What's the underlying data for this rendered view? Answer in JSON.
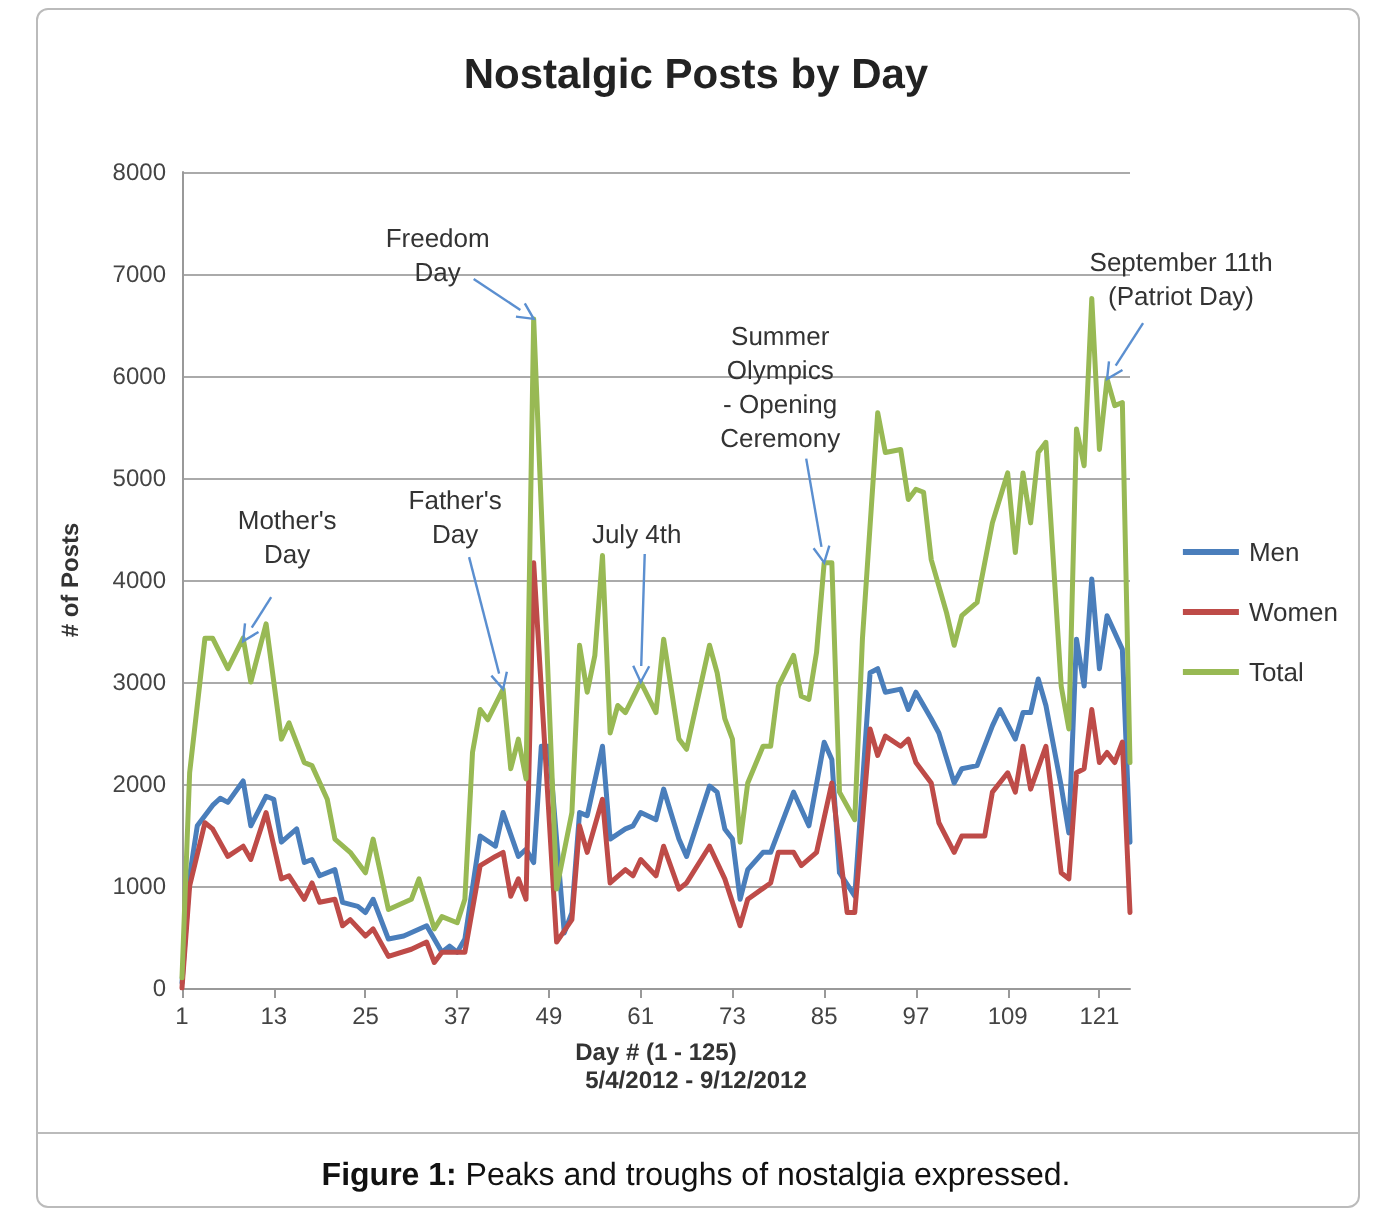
{
  "chart_data": {
    "type": "line",
    "title": "Nostalgic Posts by Day",
    "xlabel": "Day # (1 - 125)",
    "ylabel": "# of Posts",
    "xlim": [
      1,
      125
    ],
    "xticks": [
      1,
      13,
      25,
      37,
      49,
      61,
      73,
      85,
      97,
      109,
      121
    ],
    "ylim": [
      0,
      8000
    ],
    "yticks": [
      0,
      1000,
      2000,
      3000,
      4000,
      5000,
      6000,
      7000,
      8000
    ],
    "grid": "y",
    "legend": "right",
    "marker": "none",
    "line_style": "solid",
    "series": [
      {
        "name": "Men",
        "color": "#4a7ebb",
        "x": [
          1,
          2,
          3,
          5,
          6,
          7,
          9,
          10,
          12,
          13,
          14,
          16,
          17,
          18,
          19,
          21,
          22,
          24,
          25,
          26,
          28,
          30,
          33,
          35,
          36,
          37,
          38,
          40,
          42,
          43,
          45,
          46,
          47,
          48,
          49,
          51,
          52,
          53,
          54,
          56,
          57,
          59,
          60,
          61,
          63,
          64,
          66,
          67,
          70,
          71,
          72,
          73,
          74,
          75,
          77,
          78,
          81,
          83,
          85,
          86,
          87,
          89,
          91,
          92,
          93,
          95,
          96,
          97,
          99,
          100,
          102,
          103,
          105,
          107,
          108,
          110,
          111,
          112,
          113,
          114,
          116,
          117,
          118,
          119,
          120,
          121,
          122,
          124,
          125
        ],
        "values": [
          50,
          1100,
          1590,
          1790,
          1860,
          1820,
          2030,
          1590,
          1880,
          1850,
          1430,
          1560,
          1230,
          1260,
          1100,
          1160,
          840,
          800,
          740,
          870,
          480,
          510,
          610,
          350,
          410,
          350,
          480,
          1490,
          1390,
          1720,
          1290,
          1360,
          1230,
          2370,
          2370,
          540,
          740,
          1720,
          1690,
          2370,
          1460,
          1560,
          1590,
          1720,
          1650,
          1950,
          1460,
          1290,
          1980,
          1920,
          1560,
          1460,
          870,
          1160,
          1330,
          1330,
          1920,
          1590,
          2410,
          2240,
          1130,
          900,
          3090,
          3130,
          2900,
          2930,
          2730,
          2900,
          2640,
          2500,
          2010,
          2150,
          2180,
          2570,
          2730,
          2440,
          2700,
          2700,
          3030,
          2770,
          1980,
          1520,
          3420,
          2960,
          4010,
          3130,
          3650,
          3320,
          1430
        ]
      },
      {
        "name": "Women",
        "color": "#be4b48",
        "x": [
          1,
          2,
          4,
          5,
          7,
          9,
          10,
          12,
          14,
          15,
          17,
          18,
          19,
          21,
          22,
          23,
          25,
          26,
          28,
          31,
          33,
          34,
          35,
          38,
          40,
          42,
          43,
          44,
          45,
          46,
          47,
          50,
          52,
          53,
          54,
          56,
          57,
          59,
          60,
          61,
          63,
          64,
          66,
          67,
          70,
          72,
          74,
          75,
          78,
          79,
          81,
          82,
          84,
          86,
          88,
          89,
          91,
          92,
          93,
          95,
          96,
          97,
          99,
          100,
          102,
          103,
          106,
          107,
          109,
          110,
          111,
          112,
          114,
          116,
          117,
          118,
          119,
          120,
          121,
          122,
          123,
          124,
          125
        ],
        "values": [
          0,
          1000,
          1620,
          1560,
          1290,
          1390,
          1260,
          1720,
          1070,
          1100,
          870,
          1030,
          840,
          870,
          610,
          670,
          510,
          580,
          310,
          380,
          450,
          250,
          350,
          350,
          1200,
          1290,
          1330,
          900,
          1070,
          870,
          4170,
          450,
          670,
          1590,
          1330,
          1850,
          1030,
          1160,
          1100,
          1260,
          1100,
          1390,
          970,
          1030,
          1390,
          1070,
          610,
          870,
          1030,
          1330,
          1330,
          1200,
          1330,
          2010,
          740,
          740,
          2540,
          2280,
          2470,
          2370,
          2440,
          2210,
          2010,
          1620,
          1330,
          1490,
          1490,
          1920,
          2110,
          1920,
          2370,
          1950,
          2370,
          1130,
          1070,
          2110,
          2150,
          2730,
          2210,
          2310,
          2210,
          2410,
          740
        ]
      },
      {
        "name": "Total",
        "color": "#98b954",
        "x": [
          1,
          2,
          4,
          5,
          7,
          9,
          10,
          12,
          14,
          15,
          17,
          18,
          20,
          21,
          23,
          25,
          26,
          28,
          31,
          32,
          34,
          35,
          37,
          38,
          39,
          40,
          41,
          43,
          44,
          45,
          46,
          47,
          50,
          52,
          53,
          54,
          55,
          56,
          57,
          58,
          59,
          61,
          63,
          64,
          66,
          67,
          70,
          71,
          72,
          73,
          74,
          75,
          77,
          78,
          79,
          81,
          82,
          83,
          84,
          85,
          86,
          87,
          89,
          90,
          92,
          93,
          95,
          96,
          97,
          98,
          99,
          101,
          102,
          103,
          105,
          107,
          109,
          110,
          111,
          112,
          113,
          114,
          116,
          117,
          118,
          119,
          120,
          121,
          122,
          123,
          124,
          125
        ],
        "values": [
          100,
          2110,
          3430,
          3430,
          3130,
          3430,
          3000,
          3570,
          2440,
          2600,
          2210,
          2180,
          1850,
          1460,
          1330,
          1130,
          1460,
          770,
          870,
          1070,
          580,
          700,
          640,
          870,
          2310,
          2730,
          2630,
          2930,
          2150,
          2440,
          2050,
          6560,
          970,
          1720,
          3360,
          2900,
          3260,
          4240,
          2500,
          2770,
          2700,
          3000,
          2700,
          3420,
          2440,
          2340,
          3360,
          3090,
          2640,
          2440,
          1430,
          2010,
          2370,
          2370,
          2960,
          3260,
          2860,
          2830,
          3290,
          4170,
          4170,
          1920,
          1650,
          3420,
          5640,
          5250,
          5280,
          4790,
          4890,
          4860,
          4200,
          3680,
          3360,
          3650,
          3780,
          4560,
          5050,
          4270,
          5050,
          4560,
          5250,
          5350,
          2960,
          2540,
          5480,
          5120,
          6760,
          5280,
          5970,
          5710,
          5740,
          2210
        ]
      }
    ],
    "annotations": [
      {
        "text": "Mother's\nDay",
        "x": 9,
        "y": 3400
      },
      {
        "text": "Father's\nDay",
        "x": 43,
        "y": 2930
      },
      {
        "text": "Freedom\nDay",
        "x": 47,
        "y": 6560
      },
      {
        "text": "July 4th",
        "x": 61,
        "y": 3000
      },
      {
        "text": "Summer\nOlympics\n- Opening\nCeremony",
        "x": 85,
        "y": 4170
      },
      {
        "text": "September 11th\n(Patriot Day)",
        "x": 122,
        "y": 5970
      },
      "5/4/2012 - 9/12/2012",
      "Figure 1: Peaks and troughs of nostalgia expressed."
    ]
  }
}
